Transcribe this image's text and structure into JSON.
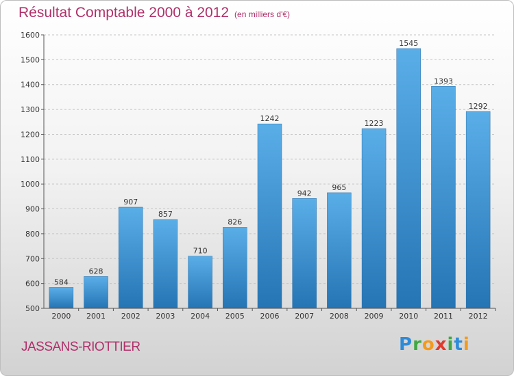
{
  "chart_data": {
    "type": "bar",
    "title": "Résultat Comptable 2000 à 2012",
    "subtitle": "(en milliers d'€)",
    "categories": [
      "2000",
      "2001",
      "2002",
      "2003",
      "2004",
      "2005",
      "2006",
      "2007",
      "2008",
      "2009",
      "2010",
      "2011",
      "2012"
    ],
    "values": [
      584,
      628,
      907,
      857,
      710,
      826,
      1242,
      942,
      965,
      1223,
      1545,
      1393,
      1292
    ],
    "ylim": [
      500,
      1600
    ],
    "yticks": [
      500,
      600,
      700,
      800,
      900,
      1000,
      1100,
      1200,
      1300,
      1400,
      1500,
      1600
    ],
    "xlabel": "",
    "ylabel": "",
    "grid": "horizontal dashed"
  },
  "place": "JASSANS-RIOTTIER",
  "logo": {
    "letters": [
      "P",
      "r",
      "o",
      "x",
      "i",
      "t",
      "i"
    ]
  },
  "colors": {
    "title": "#b0306a",
    "bar_top": "#5aaee8",
    "bar_bottom": "#2574b4",
    "logo": [
      "#2e8bd8",
      "#3fa842",
      "#f39a1c",
      "#e03a2c",
      "#3fa842",
      "#2e8bd8",
      "#f39a1c"
    ]
  }
}
